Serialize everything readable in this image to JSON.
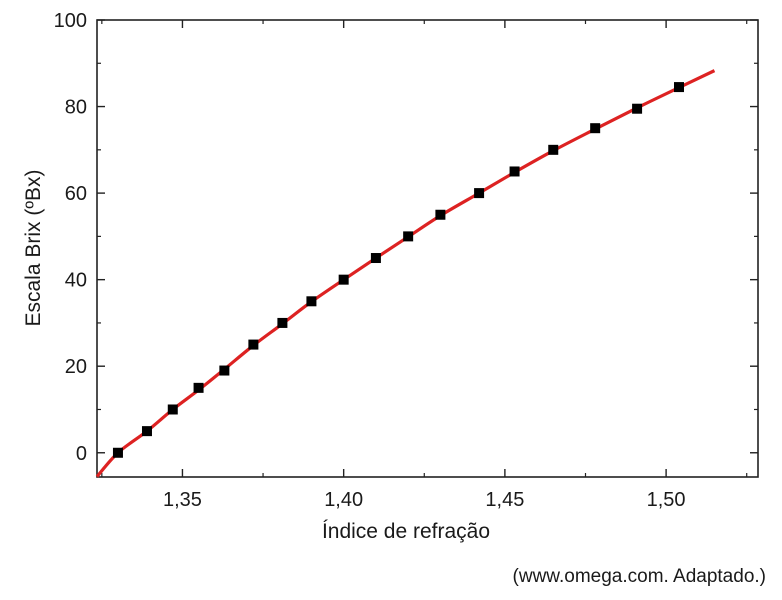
{
  "chart_data": {
    "type": "scatter",
    "title": "",
    "xlabel": "Índice de refração",
    "ylabel": "Escala Brix (ºBx)",
    "xlim": [
      1.3235,
      1.5285
    ],
    "ylim": [
      -5.6,
      100
    ],
    "xticks": [
      1.35,
      1.4,
      1.45,
      1.5
    ],
    "xtick_labels": [
      "1,35",
      "1,40",
      "1,45",
      "1,50"
    ],
    "yticks": [
      0,
      20,
      40,
      60,
      80,
      100
    ],
    "ytick_labels": [
      "0",
      "20",
      "40",
      "60",
      "80",
      "100"
    ],
    "grid": false,
    "legend": "none",
    "series": [
      {
        "kind": "markers",
        "marker": "square",
        "color": "#000000",
        "x": [
          1.33,
          1.339,
          1.347,
          1.355,
          1.363,
          1.372,
          1.381,
          1.39,
          1.4,
          1.41,
          1.42,
          1.43,
          1.442,
          1.453,
          1.465,
          1.478,
          1.491,
          1.504
        ],
        "y": [
          0,
          5,
          10,
          15,
          19,
          25,
          30,
          35,
          40,
          45,
          50,
          55,
          60,
          65,
          70,
          75,
          79.5,
          84.5
        ]
      },
      {
        "kind": "line",
        "color": "#dd2222",
        "x": [
          1.3235,
          1.33,
          1.339,
          1.347,
          1.355,
          1.363,
          1.372,
          1.381,
          1.39,
          1.4,
          1.41,
          1.42,
          1.43,
          1.442,
          1.453,
          1.465,
          1.478,
          1.491,
          1.504,
          1.515
        ],
        "y": [
          -5.5,
          0,
          5,
          10,
          14.5,
          19.3,
          24.8,
          29.8,
          34.9,
          40,
          45,
          49.9,
          54.8,
          60,
          64.8,
          69.8,
          74.8,
          79.7,
          84.4,
          88.3
        ]
      }
    ]
  },
  "source_note": "(www.omega.com. Adaptado.)"
}
